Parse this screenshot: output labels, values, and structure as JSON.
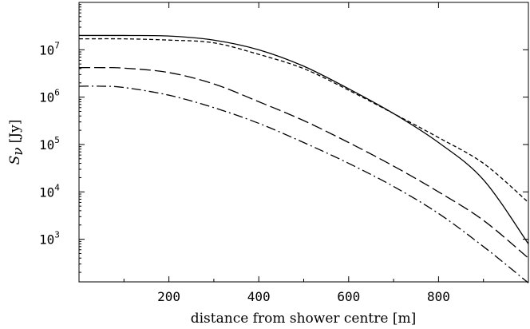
{
  "chart_data": {
    "type": "line",
    "xlabel": "distance from shower centre [m]",
    "ylabel": {
      "symbol": "S",
      "subscript": "ν",
      "unit": "[Jy]"
    },
    "xlim": [
      0,
      1000
    ],
    "ylim_log10": [
      2.1,
      8.0
    ],
    "y_scale": "log",
    "x_ticks": [
      200,
      400,
      600,
      800
    ],
    "y_ticks": [
      {
        "base": "10",
        "exp": "3",
        "value": 1000
      },
      {
        "base": "10",
        "exp": "4",
        "value": 10000
      },
      {
        "base": "10",
        "exp": "5",
        "value": 100000
      },
      {
        "base": "10",
        "exp": "6",
        "value": 1000000
      },
      {
        "base": "10",
        "exp": "7",
        "value": 10000000
      }
    ],
    "grid": false,
    "series": [
      {
        "style": "solid",
        "x": [
          0,
          100,
          200,
          300,
          400,
          500,
          600,
          700,
          800,
          900,
          1000
        ],
        "y": [
          20000000.0,
          20000000.0,
          19500000.0,
          16000000.0,
          10000000.0,
          4500000.0,
          1500000.0,
          450000.0,
          110000.0,
          18000.0,
          800.0
        ]
      },
      {
        "style": "short-dash",
        "x": [
          0,
          100,
          200,
          300,
          400,
          500,
          600,
          700,
          800,
          900,
          1000
        ],
        "y": [
          17000000.0,
          17000000.0,
          16000000.0,
          14000000.0,
          8000000.0,
          4000000.0,
          1400000.0,
          450000.0,
          140000.0,
          40000.0,
          6000.0
        ]
      },
      {
        "style": "long-dash",
        "x": [
          0,
          50,
          100,
          200,
          300,
          400,
          500,
          600,
          700,
          800,
          900,
          1000
        ],
        "y": [
          4200000.0,
          4200000.0,
          4100000.0,
          3300000.0,
          1900000.0,
          800000.0,
          320000.0,
          110000.0,
          35000.0,
          10000.0,
          2500.0,
          400.0
        ]
      },
      {
        "style": "dash-dot",
        "x": [
          0,
          50,
          100,
          200,
          300,
          400,
          500,
          600,
          700,
          800,
          900,
          1000
        ],
        "y": [
          1700000.0,
          1700000.0,
          1600000.0,
          1100000.0,
          600000.0,
          280000.0,
          110000.0,
          40000.0,
          13000.0,
          3500.0,
          700.0,
          120.0
        ]
      }
    ]
  }
}
